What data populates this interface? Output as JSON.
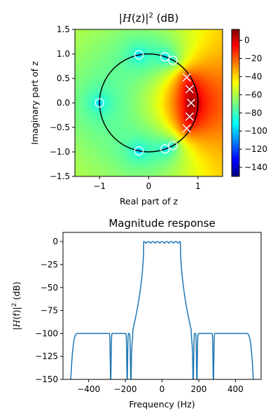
{
  "chart_data": [
    {
      "type": "heatmap",
      "title_prefix": "|",
      "title_symbol": "H",
      "title_mid": "(z)|",
      "title_sup": "2",
      "title_suffix": " (dB)",
      "xlabel": "Real part of z",
      "ylabel": "Imaginary part of z",
      "xlim": [
        -1.5,
        1.5
      ],
      "ylim": [
        -1.5,
        1.5
      ],
      "x_ticks": [
        -1,
        0,
        1
      ],
      "x_tick_labels": [
        "−1",
        "0",
        "1"
      ],
      "y_ticks": [
        1.5,
        1.0,
        0.5,
        0.0,
        -0.5,
        -1.0,
        -1.5
      ],
      "y_tick_labels": [
        "1.5",
        "1.0",
        "0.5",
        "0.0",
        "−0.5",
        "−1.0",
        "−1.5"
      ],
      "colormap": "jet",
      "colorbar": {
        "range": [
          -150,
          12
        ],
        "ticks": [
          0,
          -20,
          -40,
          -60,
          -80,
          -100,
          -120,
          -140
        ],
        "tick_labels": [
          "0",
          "−20",
          "−40",
          "−60",
          "−80",
          "−100",
          "−120",
          "−140"
        ]
      },
      "unit_circle": true,
      "zeros": [
        {
          "re": -1.0,
          "im": 0.0
        },
        {
          "re": -0.2,
          "im": 0.98
        },
        {
          "re": -0.2,
          "im": -0.98
        },
        {
          "re": 0.33,
          "im": 0.94
        },
        {
          "re": 0.33,
          "im": -0.94
        },
        {
          "re": 0.49,
          "im": 0.87
        },
        {
          "re": 0.49,
          "im": -0.87
        }
      ],
      "poles": [
        {
          "re": 0.77,
          "im": 0.52
        },
        {
          "re": 0.77,
          "im": -0.52
        },
        {
          "re": 0.83,
          "im": 0.28
        },
        {
          "re": 0.83,
          "im": -0.28
        },
        {
          "re": 0.86,
          "im": 0.0
        }
      ]
    },
    {
      "type": "line",
      "title": "Magnitude response",
      "xlabel": "Frequency (Hz)",
      "ylabel_prefix": "|",
      "ylabel_symbol": "H",
      "ylabel_mid": "(f)|",
      "ylabel_sup": "2",
      "ylabel_suffix": " (dB)",
      "xlim": [
        -540,
        540
      ],
      "ylim": [
        -150,
        10
      ],
      "x_ticks": [
        -400,
        -200,
        0,
        200,
        400
      ],
      "x_tick_labels": [
        "−400",
        "−200",
        "0",
        "200",
        "400"
      ],
      "y_ticks": [
        0,
        -25,
        -50,
        -75,
        -100,
        -125,
        -150
      ],
      "y_tick_labels": [
        "0",
        "−25",
        "−50",
        "−75",
        "−100",
        "−125",
        "−150"
      ],
      "line_color": "#1f77b4",
      "passband_edge": 100,
      "passband_ripple_peaks": [
        -100,
        -75,
        -50,
        -25,
        0,
        25,
        50,
        75,
        100
      ],
      "notches": [
        170,
        190,
        280
      ],
      "fs_half": 500
    }
  ]
}
